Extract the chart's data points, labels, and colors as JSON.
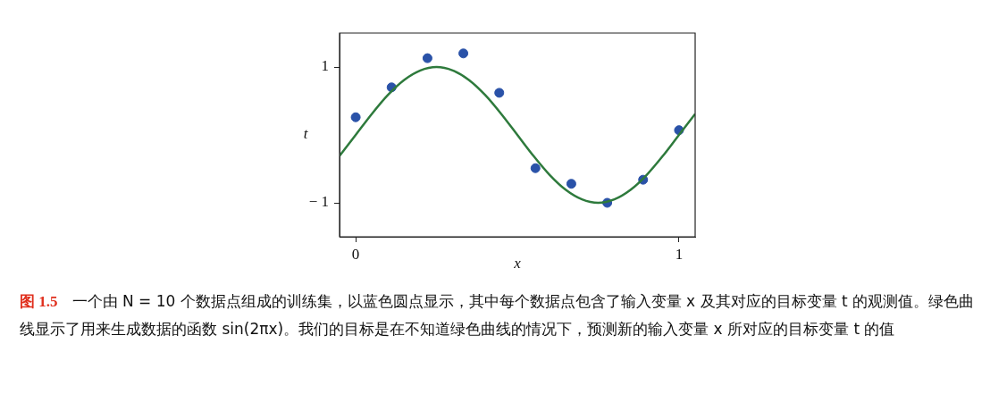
{
  "chart_data": {
    "type": "scatter",
    "xlabel": "x",
    "ylabel": "t",
    "xlim": [
      -0.05,
      1.05
    ],
    "ylim": [
      -1.5,
      1.5
    ],
    "xticks": [
      0,
      1
    ],
    "yticks": [
      {
        "value": -1,
        "label": "− 1"
      },
      1
    ],
    "grid": false,
    "legend": false,
    "marker": "circle",
    "series": [
      {
        "type": "line",
        "color": "#2e7a3c",
        "marker": "none",
        "x": [
          -0.05,
          0,
          0.05,
          0.1,
          0.15,
          0.2,
          0.25,
          0.3,
          0.35,
          0.4,
          0.45,
          0.5,
          0.55,
          0.6,
          0.65,
          0.7,
          0.75,
          0.8,
          0.85,
          0.9,
          0.95,
          1,
          1.05
        ],
        "values": [
          -0.31,
          0,
          0.31,
          0.59,
          0.81,
          0.95,
          1,
          0.95,
          0.81,
          0.59,
          0.31,
          0,
          -0.31,
          -0.59,
          -0.81,
          -0.95,
          -1,
          -0.95,
          -0.81,
          -0.59,
          -0.31,
          0,
          0.31
        ]
      },
      {
        "type": "scatter",
        "color": "#2a52a8",
        "x": [
          0,
          0.111,
          0.222,
          0.333,
          0.444,
          0.556,
          0.667,
          0.778,
          0.889,
          1
        ],
        "values": [
          0.26,
          0.7,
          1.13,
          1.2,
          0.62,
          -0.49,
          -0.72,
          -1.0,
          -0.66,
          0.07
        ]
      }
    ],
    "annotations": [
      "图 1.5",
      "一个由 N = 10 个数据点组成的训练集，以蓝色圆点显示，其中每个数据点包含了输入变量 x 及其对应的目标变量 t 的观测值。绿色曲线显示了用来生成数据的函数 sin(2πx)。我们的目标是在不知道绿色曲线的情况下，预测新的输入变量 x 所对应的目标变量 t 的值"
    ]
  }
}
